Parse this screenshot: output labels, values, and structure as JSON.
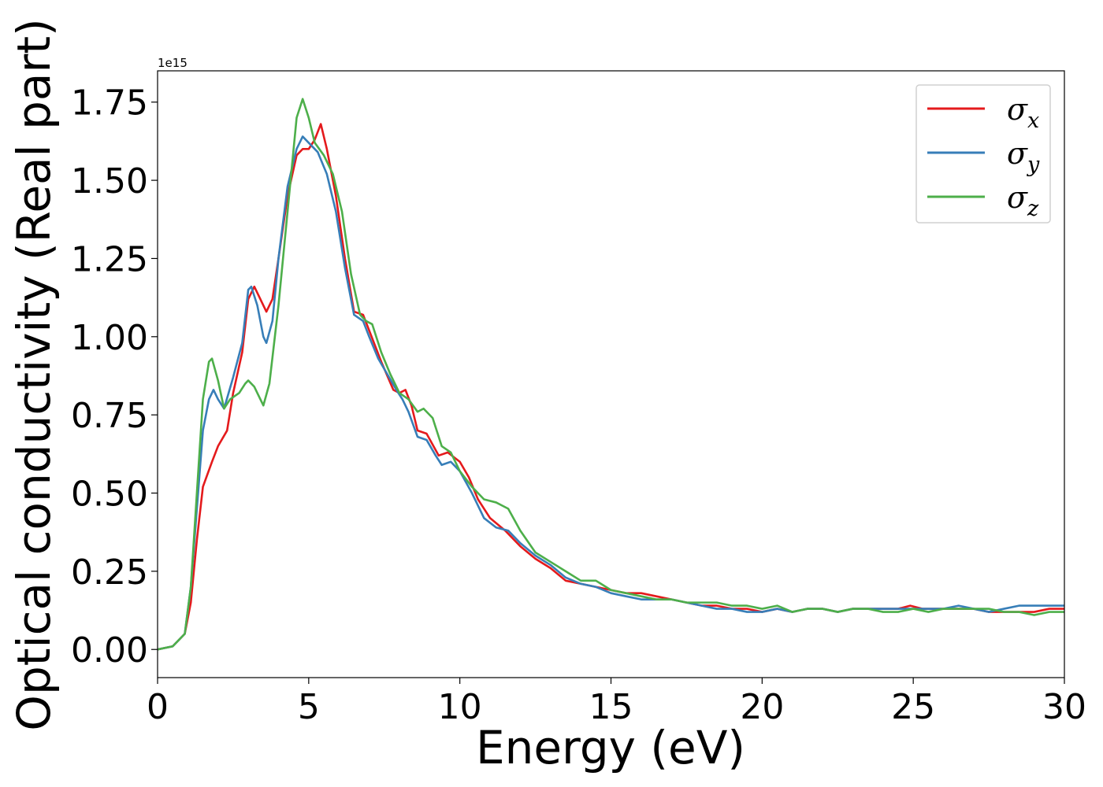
{
  "chart_data": {
    "type": "line",
    "xlabel": "Energy (eV)",
    "ylabel": "Optical conductivity (Real part)",
    "y_offset_text": "1e15",
    "xlim": [
      0,
      30
    ],
    "ylim": [
      -0.09,
      1.85
    ],
    "y_scale_factor": 1000000000000000.0,
    "x_ticks": [
      0,
      5,
      10,
      15,
      20,
      25,
      30
    ],
    "x_tick_labels": [
      "0",
      "5",
      "10",
      "15",
      "20",
      "25",
      "30"
    ],
    "y_ticks": [
      0.0,
      0.25,
      0.5,
      0.75,
      1.0,
      1.25,
      1.5,
      1.75
    ],
    "y_tick_labels": [
      "0.00",
      "0.25",
      "0.50",
      "0.75",
      "1.00",
      "1.25",
      "1.50",
      "1.75"
    ],
    "grid": false,
    "legend_position": "top-right",
    "series": [
      {
        "name": "σx",
        "legend_symbol": "σ",
        "legend_subscript": "x",
        "color": "#e41a1c",
        "points": [
          [
            0,
            0
          ],
          [
            0.5,
            0.01
          ],
          [
            0.9,
            0.05
          ],
          [
            1.1,
            0.15
          ],
          [
            1.3,
            0.35
          ],
          [
            1.5,
            0.52
          ],
          [
            1.8,
            0.6
          ],
          [
            2.0,
            0.65
          ],
          [
            2.3,
            0.7
          ],
          [
            2.5,
            0.82
          ],
          [
            2.8,
            0.95
          ],
          [
            3.0,
            1.12
          ],
          [
            3.2,
            1.16
          ],
          [
            3.4,
            1.12
          ],
          [
            3.6,
            1.08
          ],
          [
            3.8,
            1.12
          ],
          [
            4.0,
            1.25
          ],
          [
            4.3,
            1.45
          ],
          [
            4.6,
            1.58
          ],
          [
            4.8,
            1.6
          ],
          [
            5.0,
            1.6
          ],
          [
            5.2,
            1.63
          ],
          [
            5.4,
            1.68
          ],
          [
            5.6,
            1.6
          ],
          [
            5.9,
            1.45
          ],
          [
            6.2,
            1.25
          ],
          [
            6.5,
            1.08
          ],
          [
            6.8,
            1.07
          ],
          [
            7.0,
            1.02
          ],
          [
            7.4,
            0.92
          ],
          [
            7.8,
            0.83
          ],
          [
            8.0,
            0.82
          ],
          [
            8.2,
            0.83
          ],
          [
            8.4,
            0.78
          ],
          [
            8.6,
            0.7
          ],
          [
            8.9,
            0.69
          ],
          [
            9.3,
            0.62
          ],
          [
            9.6,
            0.63
          ],
          [
            10.0,
            0.6
          ],
          [
            10.3,
            0.55
          ],
          [
            10.6,
            0.48
          ],
          [
            11.0,
            0.42
          ],
          [
            11.5,
            0.38
          ],
          [
            12.0,
            0.33
          ],
          [
            12.5,
            0.29
          ],
          [
            13.0,
            0.26
          ],
          [
            13.5,
            0.22
          ],
          [
            14.0,
            0.21
          ],
          [
            14.5,
            0.2
          ],
          [
            15.0,
            0.19
          ],
          [
            15.5,
            0.18
          ],
          [
            16.0,
            0.18
          ],
          [
            16.5,
            0.17
          ],
          [
            17.0,
            0.16
          ],
          [
            17.5,
            0.15
          ],
          [
            18.0,
            0.14
          ],
          [
            18.5,
            0.14
          ],
          [
            19.0,
            0.13
          ],
          [
            19.5,
            0.13
          ],
          [
            20.0,
            0.12
          ],
          [
            20.5,
            0.13
          ],
          [
            21.0,
            0.12
          ],
          [
            21.5,
            0.13
          ],
          [
            22.0,
            0.13
          ],
          [
            22.5,
            0.12
          ],
          [
            23.0,
            0.13
          ],
          [
            23.5,
            0.13
          ],
          [
            24.0,
            0.13
          ],
          [
            24.5,
            0.13
          ],
          [
            24.9,
            0.14
          ],
          [
            25.3,
            0.13
          ],
          [
            25.8,
            0.13
          ],
          [
            26.5,
            0.13
          ],
          [
            27.0,
            0.13
          ],
          [
            27.5,
            0.12
          ],
          [
            28.0,
            0.12
          ],
          [
            28.5,
            0.12
          ],
          [
            29.0,
            0.12
          ],
          [
            29.5,
            0.13
          ],
          [
            30.0,
            0.13
          ]
        ]
      },
      {
        "name": "σy",
        "legend_symbol": "σ",
        "legend_subscript": "y",
        "color": "#377eb8",
        "points": [
          [
            0,
            0
          ],
          [
            0.5,
            0.01
          ],
          [
            0.9,
            0.05
          ],
          [
            1.1,
            0.2
          ],
          [
            1.3,
            0.45
          ],
          [
            1.5,
            0.7
          ],
          [
            1.7,
            0.8
          ],
          [
            1.85,
            0.83
          ],
          [
            2.0,
            0.8
          ],
          [
            2.2,
            0.77
          ],
          [
            2.5,
            0.87
          ],
          [
            2.8,
            0.98
          ],
          [
            3.0,
            1.15
          ],
          [
            3.1,
            1.16
          ],
          [
            3.3,
            1.1
          ],
          [
            3.5,
            1.0
          ],
          [
            3.6,
            0.98
          ],
          [
            3.8,
            1.05
          ],
          [
            4.0,
            1.25
          ],
          [
            4.3,
            1.48
          ],
          [
            4.6,
            1.6
          ],
          [
            4.8,
            1.64
          ],
          [
            5.0,
            1.62
          ],
          [
            5.3,
            1.59
          ],
          [
            5.6,
            1.52
          ],
          [
            5.9,
            1.4
          ],
          [
            6.2,
            1.22
          ],
          [
            6.5,
            1.07
          ],
          [
            6.8,
            1.05
          ],
          [
            7.0,
            1.0
          ],
          [
            7.3,
            0.93
          ],
          [
            7.6,
            0.88
          ],
          [
            7.9,
            0.83
          ],
          [
            8.1,
            0.8
          ],
          [
            8.3,
            0.76
          ],
          [
            8.6,
            0.68
          ],
          [
            8.9,
            0.67
          ],
          [
            9.2,
            0.62
          ],
          [
            9.4,
            0.59
          ],
          [
            9.7,
            0.6
          ],
          [
            10.0,
            0.57
          ],
          [
            10.4,
            0.5
          ],
          [
            10.8,
            0.42
          ],
          [
            11.2,
            0.39
          ],
          [
            11.6,
            0.38
          ],
          [
            12.0,
            0.34
          ],
          [
            12.5,
            0.3
          ],
          [
            13.0,
            0.27
          ],
          [
            13.5,
            0.23
          ],
          [
            14.0,
            0.21
          ],
          [
            14.5,
            0.2
          ],
          [
            15.0,
            0.18
          ],
          [
            15.5,
            0.17
          ],
          [
            16.0,
            0.16
          ],
          [
            16.5,
            0.16
          ],
          [
            17.0,
            0.16
          ],
          [
            17.5,
            0.15
          ],
          [
            18.0,
            0.14
          ],
          [
            18.5,
            0.13
          ],
          [
            19.0,
            0.13
          ],
          [
            19.5,
            0.12
          ],
          [
            20.0,
            0.12
          ],
          [
            20.5,
            0.13
          ],
          [
            21.0,
            0.12
          ],
          [
            21.5,
            0.13
          ],
          [
            22.0,
            0.13
          ],
          [
            22.5,
            0.12
          ],
          [
            23.0,
            0.13
          ],
          [
            23.5,
            0.13
          ],
          [
            24.0,
            0.13
          ],
          [
            24.5,
            0.13
          ],
          [
            25.0,
            0.13
          ],
          [
            25.5,
            0.13
          ],
          [
            26.0,
            0.13
          ],
          [
            26.5,
            0.14
          ],
          [
            27.0,
            0.13
          ],
          [
            27.5,
            0.12
          ],
          [
            28.0,
            0.13
          ],
          [
            28.5,
            0.14
          ],
          [
            29.0,
            0.14
          ],
          [
            29.5,
            0.14
          ],
          [
            30.0,
            0.14
          ]
        ]
      },
      {
        "name": "σz",
        "legend_symbol": "σ",
        "legend_subscript": "z",
        "color": "#4daf4a",
        "points": [
          [
            0,
            0
          ],
          [
            0.5,
            0.01
          ],
          [
            0.9,
            0.05
          ],
          [
            1.1,
            0.2
          ],
          [
            1.3,
            0.5
          ],
          [
            1.5,
            0.8
          ],
          [
            1.7,
            0.92
          ],
          [
            1.8,
            0.93
          ],
          [
            2.0,
            0.86
          ],
          [
            2.2,
            0.77
          ],
          [
            2.4,
            0.8
          ],
          [
            2.7,
            0.82
          ],
          [
            2.9,
            0.85
          ],
          [
            3.0,
            0.86
          ],
          [
            3.2,
            0.84
          ],
          [
            3.4,
            0.8
          ],
          [
            3.5,
            0.78
          ],
          [
            3.7,
            0.85
          ],
          [
            4.0,
            1.1
          ],
          [
            4.3,
            1.4
          ],
          [
            4.6,
            1.7
          ],
          [
            4.8,
            1.76
          ],
          [
            5.0,
            1.7
          ],
          [
            5.2,
            1.62
          ],
          [
            5.5,
            1.58
          ],
          [
            5.8,
            1.52
          ],
          [
            6.1,
            1.4
          ],
          [
            6.4,
            1.2
          ],
          [
            6.7,
            1.07
          ],
          [
            6.9,
            1.05
          ],
          [
            7.1,
            1.04
          ],
          [
            7.4,
            0.95
          ],
          [
            7.7,
            0.88
          ],
          [
            8.0,
            0.82
          ],
          [
            8.3,
            0.8
          ],
          [
            8.6,
            0.76
          ],
          [
            8.8,
            0.77
          ],
          [
            9.1,
            0.74
          ],
          [
            9.4,
            0.65
          ],
          [
            9.7,
            0.63
          ],
          [
            10.0,
            0.57
          ],
          [
            10.4,
            0.52
          ],
          [
            10.8,
            0.48
          ],
          [
            11.2,
            0.47
          ],
          [
            11.6,
            0.45
          ],
          [
            12.0,
            0.38
          ],
          [
            12.5,
            0.31
          ],
          [
            13.0,
            0.28
          ],
          [
            13.5,
            0.25
          ],
          [
            14.0,
            0.22
          ],
          [
            14.5,
            0.22
          ],
          [
            15.0,
            0.19
          ],
          [
            15.5,
            0.18
          ],
          [
            16.0,
            0.17
          ],
          [
            16.5,
            0.16
          ],
          [
            17.0,
            0.16
          ],
          [
            17.5,
            0.15
          ],
          [
            18.0,
            0.15
          ],
          [
            18.5,
            0.15
          ],
          [
            19.0,
            0.14
          ],
          [
            19.5,
            0.14
          ],
          [
            20.0,
            0.13
          ],
          [
            20.5,
            0.14
          ],
          [
            21.0,
            0.12
          ],
          [
            21.5,
            0.13
          ],
          [
            22.0,
            0.13
          ],
          [
            22.5,
            0.12
          ],
          [
            23.0,
            0.13
          ],
          [
            23.5,
            0.13
          ],
          [
            24.0,
            0.12
          ],
          [
            24.5,
            0.12
          ],
          [
            25.0,
            0.13
          ],
          [
            25.5,
            0.12
          ],
          [
            26.0,
            0.13
          ],
          [
            26.5,
            0.13
          ],
          [
            27.0,
            0.13
          ],
          [
            27.5,
            0.13
          ],
          [
            28.0,
            0.12
          ],
          [
            28.5,
            0.12
          ],
          [
            29.0,
            0.11
          ],
          [
            29.5,
            0.12
          ],
          [
            30.0,
            0.12
          ]
        ]
      }
    ]
  }
}
